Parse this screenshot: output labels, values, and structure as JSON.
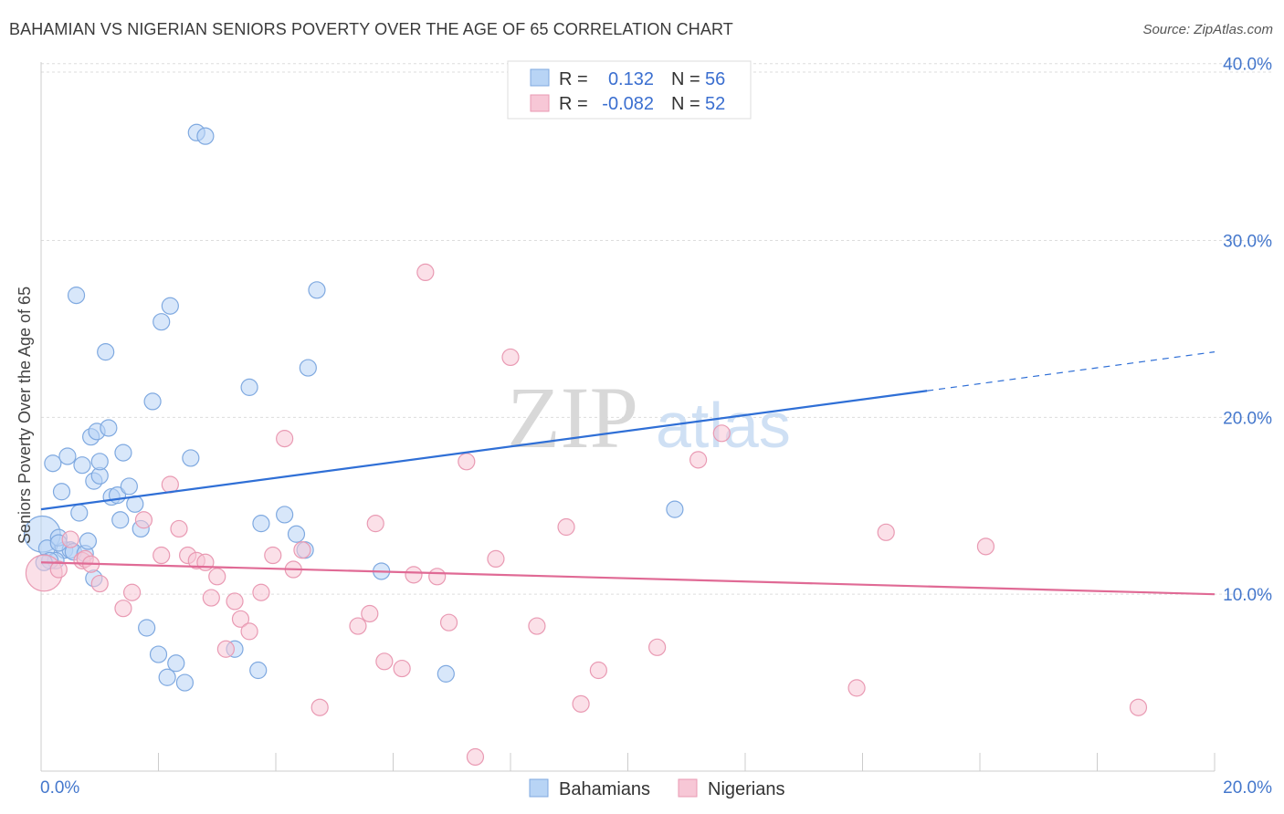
{
  "title": "BAHAMIAN VS NIGERIAN SENIORS POVERTY OVER THE AGE OF 65 CORRELATION CHART",
  "source": "Source: ZipAtlas.com",
  "watermark": {
    "zip": "ZIP",
    "atlas": "atlas"
  },
  "colors": {
    "bahamians_fill": "#b8d4f5",
    "bahamians_stroke": "#7fa9e0",
    "bahamians_line": "#2f6fd6",
    "nigerians_fill": "#f7c7d6",
    "nigerians_stroke": "#e99ab3",
    "nigerians_line": "#e06a95",
    "tick_label": "#4477cc"
  },
  "legend_top": {
    "rows": [
      {
        "r_label": "R =",
        "r_value": "0.132",
        "n_label": "N =",
        "n_value": "56"
      },
      {
        "r_label": "R =",
        "r_value": "-0.082",
        "n_label": "N =",
        "n_value": "52"
      }
    ]
  },
  "legend_bottom": [
    "Bahamians",
    "Nigerians"
  ],
  "chart_data": {
    "type": "scatter",
    "title": "BAHAMIAN VS NIGERIAN SENIORS POVERTY OVER THE AGE OF 65 CORRELATION CHART",
    "xlabel": "",
    "ylabel": "Seniors Poverty Over the Age of 65",
    "xlim": [
      0,
      20
    ],
    "ylim": [
      0,
      40.5
    ],
    "x_tick_labels": [
      "0.0%",
      "20.0%"
    ],
    "y_ticks": [
      10,
      20,
      30,
      40
    ],
    "y_tick_labels": [
      "10.0%",
      "20.0%",
      "30.0%",
      "40.0%"
    ],
    "grid": true,
    "legend_position": "top-center",
    "series": [
      {
        "name": "Bahamians",
        "R": 0.132,
        "N": 56,
        "trend": {
          "x": [
            0,
            15.1
          ],
          "y": [
            14.8,
            21.5
          ],
          "dashed_extension": {
            "x": [
              15.1,
              20
            ],
            "y": [
              21.5,
              23.7
            ]
          }
        },
        "x": [
          0.02,
          0.1,
          0.2,
          0.35,
          0.4,
          0.3,
          0.25,
          0.45,
          0.5,
          0.55,
          0.65,
          0.7,
          0.75,
          0.8,
          0.85,
          0.9,
          0.95,
          1.0,
          1.0,
          1.1,
          1.15,
          1.2,
          1.3,
          1.35,
          1.4,
          1.5,
          1.6,
          1.7,
          1.8,
          1.9,
          2.0,
          2.05,
          2.15,
          2.2,
          2.3,
          2.45,
          2.55,
          2.65,
          2.8,
          3.3,
          3.55,
          3.7,
          3.75,
          4.15,
          4.35,
          4.5,
          4.55,
          4.7,
          0.6,
          0.3,
          0.15,
          0.05,
          0.9,
          5.8,
          6.9,
          10.8
        ],
        "y": [
          13.4,
          12.6,
          17.4,
          15.8,
          12.5,
          13.2,
          11.9,
          17.8,
          12.5,
          12.4,
          14.6,
          17.3,
          12.3,
          13.0,
          18.9,
          16.4,
          19.2,
          16.7,
          17.5,
          23.7,
          19.4,
          15.5,
          15.6,
          14.2,
          18.0,
          16.1,
          15.1,
          13.7,
          8.1,
          20.9,
          6.6,
          25.4,
          5.3,
          26.3,
          6.1,
          5.0,
          17.7,
          36.1,
          35.9,
          6.9,
          21.7,
          5.7,
          14.0,
          14.5,
          13.4,
          12.5,
          22.8,
          27.2,
          26.9,
          12.9,
          11.9,
          11.8,
          10.9,
          11.3,
          5.5,
          14.8
        ],
        "sizes": [
          22,
          10,
          10,
          10,
          10,
          10,
          10,
          10,
          10,
          10,
          10,
          10,
          10,
          10,
          10,
          10,
          10,
          10,
          10,
          10,
          10,
          10,
          10,
          10,
          10,
          10,
          10,
          10,
          10,
          10,
          10,
          10,
          10,
          10,
          10,
          10,
          10,
          10,
          10,
          10,
          10,
          10,
          10,
          10,
          10,
          10,
          10,
          10,
          10,
          10,
          10,
          10,
          10,
          10,
          10,
          10
        ]
      },
      {
        "name": "Nigerians",
        "R": -0.082,
        "N": 52,
        "trend": {
          "x": [
            0,
            20
          ],
          "y": [
            11.8,
            10.0
          ]
        },
        "x": [
          0.05,
          0.3,
          0.5,
          0.7,
          0.75,
          0.85,
          1.0,
          1.4,
          1.55,
          1.75,
          2.05,
          2.2,
          2.35,
          2.5,
          2.65,
          2.8,
          2.9,
          3.0,
          3.15,
          3.3,
          3.4,
          3.55,
          3.75,
          3.95,
          4.15,
          4.3,
          4.45,
          4.75,
          5.4,
          5.6,
          5.7,
          5.85,
          6.15,
          6.35,
          6.55,
          6.75,
          6.95,
          7.25,
          7.4,
          7.75,
          8.0,
          8.45,
          8.95,
          9.2,
          9.5,
          10.5,
          11.2,
          11.6,
          13.9,
          14.4,
          16.1,
          18.7
        ],
        "y": [
          11.2,
          11.4,
          13.1,
          11.9,
          12.0,
          11.7,
          10.6,
          9.2,
          10.1,
          14.2,
          12.2,
          16.2,
          13.7,
          12.2,
          11.9,
          11.8,
          9.8,
          11.0,
          6.9,
          9.6,
          8.6,
          7.9,
          10.1,
          12.2,
          18.8,
          11.4,
          12.5,
          3.6,
          8.2,
          8.9,
          14.0,
          6.2,
          5.8,
          11.1,
          28.2,
          11.0,
          8.4,
          17.5,
          0.8,
          12.0,
          23.4,
          8.2,
          13.8,
          3.8,
          5.7,
          7.0,
          17.6,
          19.1,
          4.7,
          13.5,
          12.7,
          3.6
        ],
        "sizes": [
          22,
          10,
          10,
          10,
          10,
          10,
          10,
          10,
          10,
          10,
          10,
          10,
          10,
          10,
          10,
          10,
          10,
          10,
          10,
          10,
          10,
          10,
          10,
          10,
          10,
          10,
          10,
          10,
          10,
          10,
          10,
          10,
          10,
          10,
          10,
          10,
          10,
          10,
          10,
          10,
          10,
          10,
          10,
          10,
          10,
          10,
          10,
          10,
          10,
          10,
          10,
          10
        ]
      }
    ]
  }
}
